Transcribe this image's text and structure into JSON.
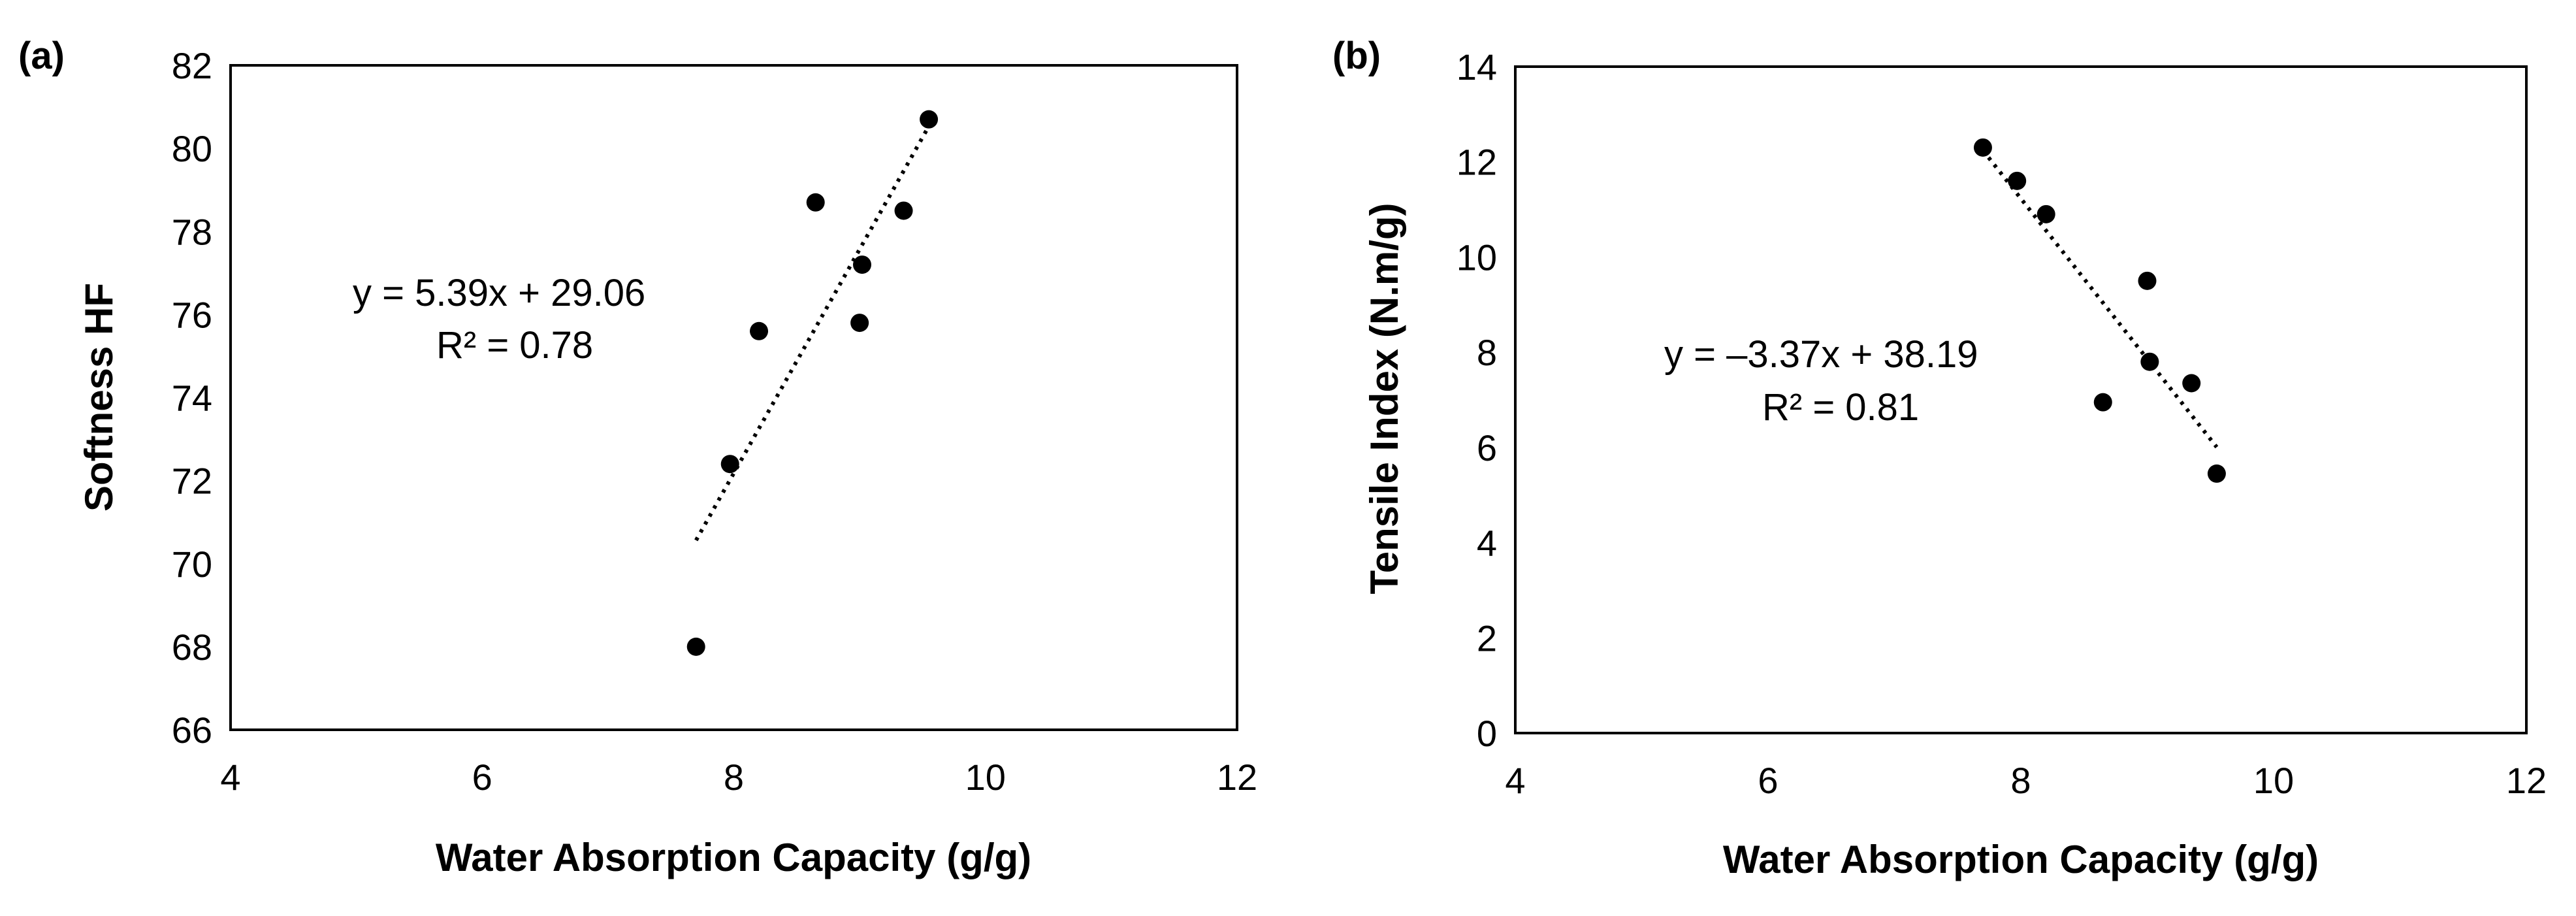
{
  "chart_data": [
    {
      "panel_label": "(a)",
      "type": "scatter",
      "title": "",
      "xlabel": "Water Absorption Capacity (g/g)",
      "ylabel": "Softness HF",
      "xlim": [
        4,
        12
      ],
      "ylim": [
        66,
        82
      ],
      "xticks": [
        4,
        6,
        8,
        10,
        12
      ],
      "yticks": [
        66,
        68,
        70,
        72,
        74,
        76,
        78,
        80,
        82
      ],
      "grid": false,
      "series": [
        {
          "name": "Softness HF",
          "points": [
            {
              "x": 7.7,
              "y": 68.0
            },
            {
              "x": 7.97,
              "y": 72.4
            },
            {
              "x": 8.2,
              "y": 75.6
            },
            {
              "x": 8.65,
              "y": 78.7
            },
            {
              "x": 9.0,
              "y": 75.8
            },
            {
              "x": 9.02,
              "y": 77.2
            },
            {
              "x": 9.35,
              "y": 78.5
            },
            {
              "x": 9.55,
              "y": 80.7
            }
          ]
        }
      ],
      "trendline": {
        "type": "linear",
        "slope": 5.39,
        "intercept": 29.06,
        "x_range": [
          7.7,
          9.55
        ],
        "equation": "y = 5.39x + 29.06",
        "r_squared": "R² = 0.78"
      }
    },
    {
      "panel_label": "(b)",
      "type": "scatter",
      "title": "",
      "xlabel": "Water Absorption Capacity (g/g)",
      "ylabel": "Tensile Index (N.m/g)",
      "xlim": [
        4,
        12
      ],
      "ylim": [
        0,
        14
      ],
      "xticks": [
        4,
        6,
        8,
        10,
        12
      ],
      "yticks": [
        0,
        2,
        4,
        6,
        8,
        10,
        12,
        14
      ],
      "grid": false,
      "series": [
        {
          "name": "Tensile Index",
          "points": [
            {
              "x": 7.7,
              "y": 12.3
            },
            {
              "x": 7.97,
              "y": 11.6
            },
            {
              "x": 8.2,
              "y": 10.9
            },
            {
              "x": 8.65,
              "y": 6.95
            },
            {
              "x": 9.0,
              "y": 9.5
            },
            {
              "x": 9.02,
              "y": 7.8
            },
            {
              "x": 9.35,
              "y": 7.35
            },
            {
              "x": 9.55,
              "y": 5.45
            }
          ]
        }
      ],
      "trendline": {
        "type": "linear",
        "slope": -3.37,
        "intercept": 38.19,
        "x_range": [
          7.7,
          9.55
        ],
        "equation": "y = –3.37x + 38.19",
        "r_squared": "R² = 0.81"
      }
    }
  ],
  "colors": {
    "marker": "#000000",
    "trendline": "#000000",
    "axes": "#000000",
    "background": "#ffffff"
  }
}
